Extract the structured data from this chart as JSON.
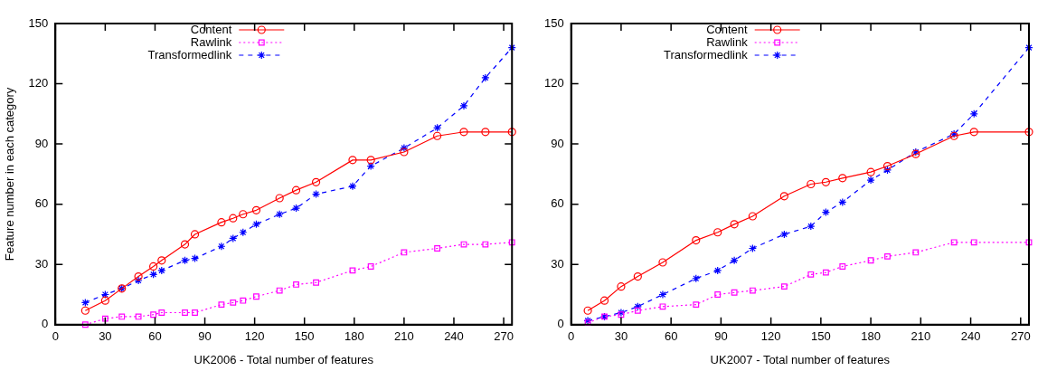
{
  "chart_data": [
    {
      "type": "line",
      "xlabel": "UK2006 - Total number of features",
      "ylabel": "Feature number in each category",
      "xlim": [
        0,
        275
      ],
      "xticks": [
        0,
        30,
        60,
        90,
        120,
        150,
        180,
        210,
        240,
        270
      ],
      "ylim": [
        0,
        150
      ],
      "yticks": [
        0,
        30,
        60,
        90,
        120,
        150
      ],
      "grid": false,
      "legend": "top left",
      "x": [
        18,
        30,
        40,
        50,
        59,
        64,
        78,
        84,
        100,
        107,
        113,
        121,
        135,
        145,
        157,
        179,
        190,
        210,
        230,
        246,
        259,
        275
      ],
      "series": [
        {
          "name": "Content",
          "color": "#ff0000",
          "marker": "circle",
          "line_style": "solid",
          "values": [
            7,
            12,
            18,
            24,
            29,
            32,
            40,
            45,
            51,
            53,
            55,
            57,
            63,
            67,
            71,
            82,
            82,
            86,
            94,
            96,
            96,
            96
          ]
        },
        {
          "name": "Rawlink",
          "color": "#ff00ff",
          "marker": "square",
          "line_style": "dotted",
          "values": [
            0,
            3,
            4,
            4,
            5,
            6,
            6,
            6,
            10,
            11,
            12,
            14,
            17,
            20,
            21,
            27,
            29,
            36,
            38,
            40,
            40,
            41
          ]
        },
        {
          "name": "Transformedlink",
          "color": "#0000ff",
          "marker": "cross",
          "line_style": "dashed",
          "values": [
            11,
            15,
            18,
            22,
            25,
            27,
            32,
            33,
            39,
            43,
            46,
            50,
            55,
            58,
            65,
            69,
            79,
            88,
            98,
            109,
            123,
            138
          ]
        }
      ]
    },
    {
      "type": "line",
      "xlabel": "UK2007 - Total number of features",
      "xlim": [
        0,
        275
      ],
      "xticks": [
        0,
        30,
        60,
        90,
        120,
        150,
        180,
        210,
        240,
        270
      ],
      "ylim": [
        0,
        150
      ],
      "yticks": [
        0,
        30,
        60,
        90,
        120,
        150
      ],
      "grid": false,
      "legend": "top left",
      "x": [
        10,
        20,
        30,
        40,
        55,
        75,
        88,
        98,
        109,
        128,
        144,
        153,
        163,
        180,
        190,
        207,
        230,
        242,
        275
      ],
      "series": [
        {
          "name": "Content",
          "color": "#ff0000",
          "marker": "circle",
          "line_style": "solid",
          "values": [
            7,
            12,
            19,
            24,
            31,
            42,
            46,
            50,
            54,
            64,
            70,
            71,
            73,
            76,
            79,
            85,
            94,
            96,
            96
          ]
        },
        {
          "name": "Rawlink",
          "color": "#ff00ff",
          "marker": "square",
          "line_style": "dotted",
          "values": [
            1,
            4,
            5,
            7,
            9,
            10,
            15,
            16,
            17,
            19,
            25,
            26,
            29,
            32,
            34,
            36,
            41,
            41,
            41
          ]
        },
        {
          "name": "Transformedlink",
          "color": "#0000ff",
          "marker": "cross",
          "line_style": "dashed",
          "values": [
            2,
            4,
            6,
            9,
            15,
            23,
            27,
            32,
            38,
            45,
            49,
            56,
            61,
            72,
            77,
            86,
            95,
            105,
            138
          ]
        }
      ]
    }
  ]
}
